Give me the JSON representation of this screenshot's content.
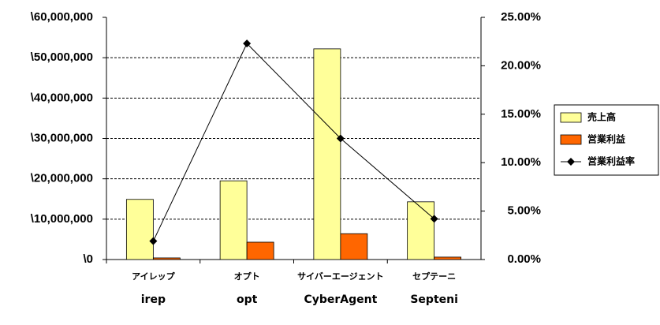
{
  "chart_data": {
    "type": "bar",
    "categories": [
      "アイレップ",
      "オプト",
      "サイバーエージェント",
      "セプテーニ"
    ],
    "series": [
      {
        "name": "売上高",
        "color": "#ffff99",
        "values": [
          14900000,
          19500000,
          52200000,
          14300000
        ]
      },
      {
        "name": "営業利益",
        "color": "#ff6600",
        "values": [
          400000,
          4300000,
          6400000,
          600000
        ]
      },
      {
        "name": "営業利益率",
        "type": "line",
        "axis": "y2",
        "color": "#000000",
        "values": [
          1.9,
          22.3,
          12.5,
          4.2
        ]
      }
    ],
    "ylim": [
      0,
      60000000
    ],
    "yticks": [
      {
        "value": 0,
        "label": "\\0"
      },
      {
        "value": 10000000,
        "label": "\\10,000,000"
      },
      {
        "value": 20000000,
        "label": "\\20,000,000"
      },
      {
        "value": 30000000,
        "label": "\\30,000,000"
      },
      {
        "value": 40000000,
        "label": "\\40,000,000"
      },
      {
        "value": 50000000,
        "label": "\\50,000,000"
      },
      {
        "value": 60000000,
        "label": "\\60,000,000"
      }
    ],
    "y2lim": [
      0,
      25
    ],
    "y2ticks": [
      {
        "value": 0,
        "label": "0.00%"
      },
      {
        "value": 5,
        "label": "5.00%"
      },
      {
        "value": 10,
        "label": "10.00%"
      },
      {
        "value": 15,
        "label": "15.00%"
      },
      {
        "value": 20,
        "label": "20.00%"
      },
      {
        "value": 25,
        "label": "25.00%"
      }
    ],
    "grid": true,
    "legend": "right",
    "logos": [
      "irep",
      "opt",
      "CyberAgent",
      "Septeni"
    ]
  }
}
